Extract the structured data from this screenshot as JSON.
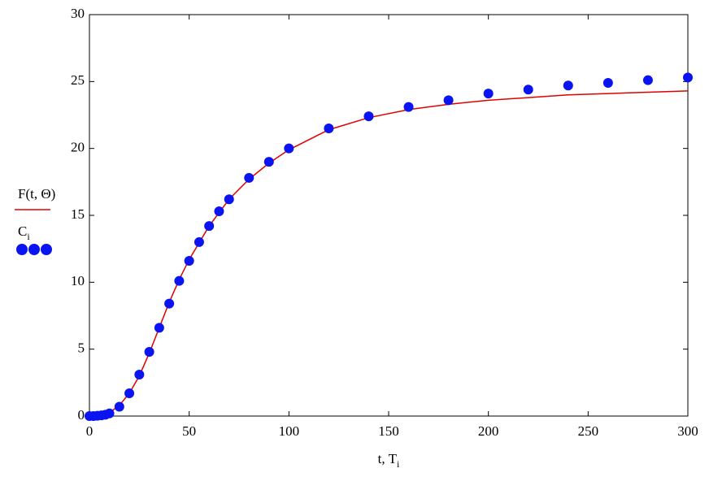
{
  "chart_data": {
    "type": "line",
    "xlabel": "t, T",
    "xlabel_subscript": "i",
    "xlim": [
      0,
      300
    ],
    "xticks": [
      0,
      50,
      100,
      150,
      200,
      250,
      300
    ],
    "ylim": [
      0,
      30
    ],
    "yticks": [
      0,
      5,
      10,
      15,
      20,
      25,
      30
    ],
    "legend": "left",
    "series": [
      {
        "name": "F(t, Θ)",
        "color": "#e00000",
        "style": "line",
        "x": [
          0,
          5,
          10,
          15,
          20,
          25,
          30,
          35,
          40,
          45,
          50,
          60,
          70,
          80,
          90,
          100,
          120,
          140,
          160,
          180,
          200,
          220,
          240,
          260,
          280,
          300
        ],
        "values": [
          0,
          0.05,
          0.25,
          0.8,
          1.7,
          3.0,
          4.7,
          6.6,
          8.5,
          10.2,
          11.7,
          14.2,
          16.2,
          17.7,
          18.9,
          19.9,
          21.4,
          22.3,
          22.9,
          23.3,
          23.6,
          23.8,
          24.0,
          24.1,
          24.2,
          24.3
        ]
      },
      {
        "name": "C",
        "name_subscript": "i",
        "color": "#0a14f0",
        "style": "markers",
        "x": [
          0,
          2,
          4,
          6,
          8,
          10,
          15,
          20,
          25,
          30,
          35,
          40,
          45,
          50,
          55,
          60,
          65,
          70,
          80,
          90,
          100,
          120,
          140,
          160,
          180,
          200,
          220,
          240,
          260,
          280,
          300
        ],
        "values": [
          0,
          0,
          0.02,
          0.05,
          0.1,
          0.2,
          0.7,
          1.7,
          3.1,
          4.8,
          6.6,
          8.4,
          10.1,
          11.6,
          13.0,
          14.2,
          15.3,
          16.2,
          17.8,
          19.0,
          20.0,
          21.5,
          22.4,
          23.1,
          23.6,
          24.1,
          24.4,
          24.7,
          24.9,
          25.1,
          25.3
        ]
      }
    ]
  }
}
